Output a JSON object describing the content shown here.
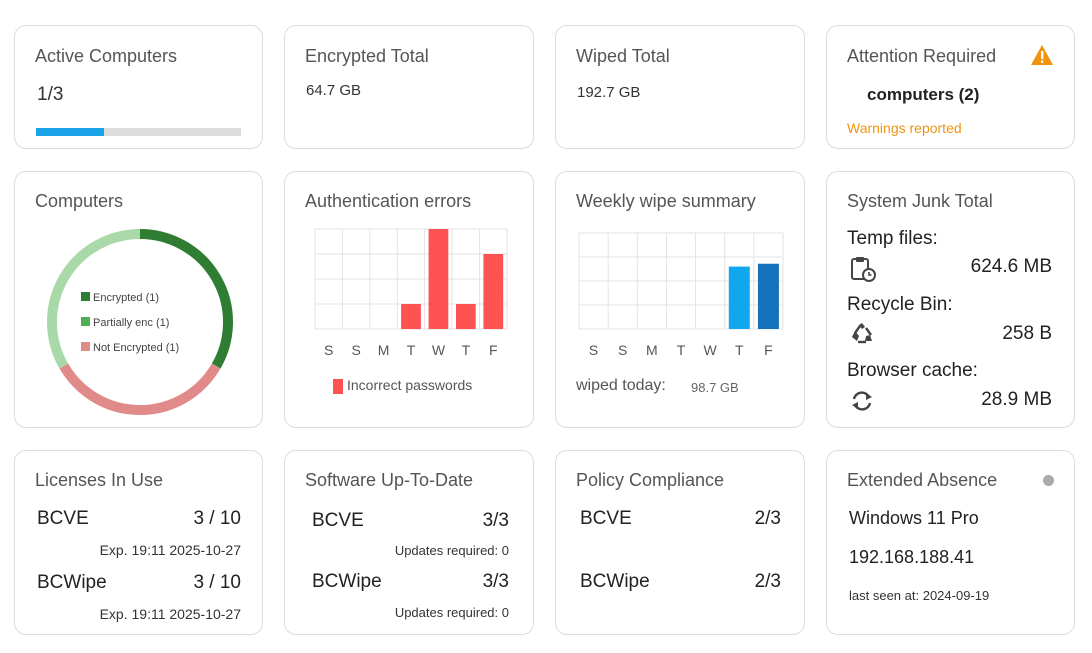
{
  "colors": {
    "accent": "#1aa3e8",
    "warning": "#f0940f",
    "encrypted": "#2e7d32",
    "partially": "#4caf50",
    "not_encrypted": "#e08a8a",
    "donut_light": "#a9d9a8",
    "bar_red": "#ff5252",
    "bar_blue_light": "#11a7ee",
    "bar_blue_dark": "#1673bb"
  },
  "active_computers": {
    "title": "Active Computers",
    "value": "1/3",
    "progress": 0.333
  },
  "encrypted_total": {
    "title": "Encrypted Total",
    "value": "64.7 GB"
  },
  "wiped_total": {
    "title": "Wiped Total",
    "value": "192.7 GB"
  },
  "attention": {
    "title": "Attention Required",
    "icon": "warning-icon",
    "value": "computers (2)",
    "note": "Warnings reported"
  },
  "computers_chart": {
    "title": "Computers",
    "legend": [
      "Encrypted (1)",
      "Partially enc (1)",
      "Not Encrypted (1)"
    ]
  },
  "auth_errors": {
    "title": "Authentication errors",
    "legend": "Incorrect passwords"
  },
  "weekly_wipe": {
    "title": "Weekly wipe summary",
    "footer_label": "wiped today:",
    "footer_value": "98.7 GB"
  },
  "junk": {
    "title": "System Junk Total",
    "items": [
      {
        "label": "Temp files:",
        "icon": "clipboard-clock-icon",
        "value": "624.6 MB"
      },
      {
        "label": "Recycle Bin:",
        "icon": "recycle-icon",
        "value": "258 B"
      },
      {
        "label": "Browser cache:",
        "icon": "refresh-icon",
        "value": "28.9 MB"
      }
    ]
  },
  "licenses": {
    "title": "Licenses In Use",
    "items": [
      {
        "name": "BCVE",
        "value": "3 / 10",
        "exp": "Exp. 19:11 2025-10-27"
      },
      {
        "name": "BCWipe",
        "value": "3 / 10",
        "exp": "Exp. 19:11 2025-10-27"
      }
    ]
  },
  "software": {
    "title": "Software Up-To-Date",
    "items": [
      {
        "name": "BCVE",
        "value": "3/3",
        "note": "Updates required: 0"
      },
      {
        "name": "BCWipe",
        "value": "3/3",
        "note": "Updates required: 0"
      }
    ]
  },
  "policy": {
    "title": "Policy Compliance",
    "items": [
      {
        "name": "BCVE",
        "value": "2/3"
      },
      {
        "name": "BCWipe",
        "value": "2/3"
      }
    ]
  },
  "absence": {
    "title": "Extended Absence",
    "os": "Windows 11 Pro",
    "ip": "192.168.188.41",
    "last_seen": "last seen at: 2024-09-19"
  },
  "chart_data": [
    {
      "type": "pie",
      "title": "Computers",
      "categories": [
        "Encrypted",
        "Partially enc",
        "Not Encrypted"
      ],
      "values": [
        1,
        1,
        1
      ],
      "legend": "inside"
    },
    {
      "type": "bar",
      "title": "Authentication errors",
      "categories": [
        "S",
        "S",
        "M",
        "T",
        "W",
        "T",
        "F"
      ],
      "series": [
        {
          "name": "Incorrect passwords",
          "values": [
            0,
            0,
            0,
            1,
            4,
            1,
            3
          ]
        }
      ],
      "ylim": [
        0,
        4
      ],
      "grid": true
    },
    {
      "type": "bar",
      "title": "Weekly wipe summary",
      "categories": [
        "S",
        "S",
        "M",
        "T",
        "W",
        "T",
        "F"
      ],
      "series": [
        {
          "name": "",
          "values": [
            0,
            0,
            0,
            0,
            0,
            65,
            68
          ]
        }
      ],
      "ylim": [
        0,
        100
      ],
      "grid": true
    }
  ]
}
